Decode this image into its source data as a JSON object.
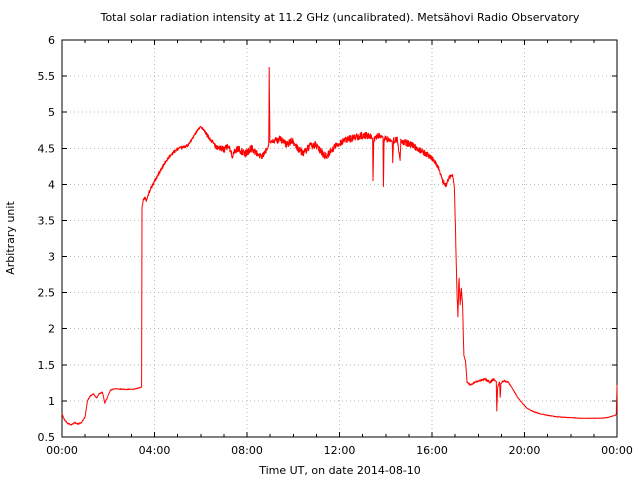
{
  "layout_colors": {
    "background": "#ffffff",
    "frame": "#000000",
    "grid": "#b8b8b8",
    "text": "#000000"
  },
  "chart_data": {
    "type": "line",
    "title": "Total solar radiation intensity at 11.2 GHz (uncalibrated). Metsähovi Radio Observatory",
    "xlabel": "Time UT, on date 2014-08-10",
    "ylabel": "Arbitrary unit",
    "xlim": [
      0,
      24
    ],
    "ylim": [
      0.5,
      6
    ],
    "grid": true,
    "legend": "none",
    "line_color": "#ff0000",
    "x_major_ticks": [
      0,
      4,
      8,
      12,
      16,
      20,
      24
    ],
    "x_major_labels": [
      "00:00",
      "04:00",
      "08:00",
      "12:00",
      "16:00",
      "20:00",
      "00:00"
    ],
    "x_minor_step": 1,
    "y_ticks": [
      0.5,
      1,
      1.5,
      2,
      2.5,
      3,
      3.5,
      4,
      4.5,
      5,
      5.5,
      6
    ],
    "y_tick_labels": [
      "0.5",
      "1",
      "1.5",
      "2",
      "2.5",
      "3",
      "3.5",
      "4",
      "4.5",
      "5",
      "5.5",
      "6"
    ],
    "series": [
      {
        "name": "total-solar-radiation-intensity",
        "control_points": [
          [
            0.0,
            0.82,
            0.008
          ],
          [
            0.1,
            0.74,
            0.008
          ],
          [
            0.25,
            0.69,
            0.008
          ],
          [
            0.4,
            0.67,
            0.008
          ],
          [
            0.55,
            0.7,
            0.008
          ],
          [
            0.7,
            0.68,
            0.008
          ],
          [
            0.85,
            0.7,
            0.008
          ],
          [
            1.0,
            0.78,
            0.008
          ],
          [
            1.1,
            1.0,
            0.008
          ],
          [
            1.2,
            1.06,
            0.008
          ],
          [
            1.35,
            1.1,
            0.008
          ],
          [
            1.5,
            1.04,
            0.008
          ],
          [
            1.6,
            1.1,
            0.008
          ],
          [
            1.75,
            1.12,
            0.008
          ],
          [
            1.85,
            0.97,
            0.008
          ],
          [
            1.95,
            1.04,
            0.008
          ],
          [
            2.1,
            1.15,
            0.006
          ],
          [
            2.3,
            1.17,
            0.005
          ],
          [
            2.7,
            1.16,
            0.005
          ],
          [
            3.1,
            1.16,
            0.005
          ],
          [
            3.44,
            1.19,
            0.005
          ],
          [
            3.46,
            3.7,
            0.02
          ],
          [
            3.55,
            3.82,
            0.025
          ],
          [
            3.65,
            3.78,
            0.025
          ],
          [
            3.8,
            3.92,
            0.025
          ],
          [
            4.0,
            4.04,
            0.025
          ],
          [
            4.2,
            4.16,
            0.025
          ],
          [
            4.4,
            4.27,
            0.025
          ],
          [
            4.6,
            4.37,
            0.022
          ],
          [
            4.8,
            4.44,
            0.022
          ],
          [
            5.0,
            4.49,
            0.02
          ],
          [
            5.2,
            4.51,
            0.02
          ],
          [
            5.45,
            4.54,
            0.018
          ],
          [
            5.65,
            4.64,
            0.018
          ],
          [
            5.85,
            4.75,
            0.015
          ],
          [
            6.0,
            4.8,
            0.015
          ],
          [
            6.15,
            4.74,
            0.02
          ],
          [
            6.4,
            4.62,
            0.03
          ],
          [
            6.7,
            4.52,
            0.04
          ],
          [
            7.0,
            4.48,
            0.045
          ],
          [
            7.2,
            4.53,
            0.045
          ],
          [
            7.35,
            4.4,
            0.045
          ],
          [
            7.6,
            4.5,
            0.045
          ],
          [
            7.9,
            4.42,
            0.05
          ],
          [
            8.2,
            4.5,
            0.05
          ],
          [
            8.45,
            4.42,
            0.045
          ],
          [
            8.65,
            4.38,
            0.04
          ],
          [
            8.85,
            4.48,
            0.035
          ],
          [
            8.94,
            4.55,
            0.02
          ],
          [
            8.96,
            5.62,
            0.0
          ],
          [
            8.99,
            4.58,
            0.02
          ],
          [
            9.2,
            4.6,
            0.045
          ],
          [
            9.45,
            4.63,
            0.05
          ],
          [
            9.7,
            4.55,
            0.05
          ],
          [
            9.95,
            4.6,
            0.05
          ],
          [
            10.2,
            4.5,
            0.05
          ],
          [
            10.45,
            4.43,
            0.05
          ],
          [
            10.7,
            4.52,
            0.05
          ],
          [
            10.95,
            4.55,
            0.05
          ],
          [
            11.2,
            4.45,
            0.055
          ],
          [
            11.45,
            4.38,
            0.05
          ],
          [
            11.65,
            4.48,
            0.05
          ],
          [
            11.9,
            4.55,
            0.05
          ],
          [
            12.15,
            4.6,
            0.05
          ],
          [
            12.45,
            4.63,
            0.05
          ],
          [
            12.75,
            4.66,
            0.05
          ],
          [
            13.05,
            4.68,
            0.05
          ],
          [
            13.35,
            4.66,
            0.045
          ],
          [
            13.43,
            4.64,
            0.0
          ],
          [
            13.45,
            4.05,
            0.0
          ],
          [
            13.48,
            4.63,
            0.04
          ],
          [
            13.7,
            4.67,
            0.045
          ],
          [
            13.88,
            4.66,
            0.0
          ],
          [
            13.9,
            3.97,
            0.0
          ],
          [
            13.93,
            4.64,
            0.04
          ],
          [
            14.1,
            4.62,
            0.045
          ],
          [
            14.28,
            4.6,
            0.0
          ],
          [
            14.3,
            4.3,
            0.0
          ],
          [
            14.33,
            4.6,
            0.045
          ],
          [
            14.5,
            4.62,
            0.045
          ],
          [
            14.62,
            4.33,
            0.0
          ],
          [
            14.65,
            4.6,
            0.04
          ],
          [
            14.85,
            4.58,
            0.045
          ],
          [
            15.1,
            4.55,
            0.045
          ],
          [
            15.35,
            4.5,
            0.04
          ],
          [
            15.6,
            4.45,
            0.04
          ],
          [
            15.85,
            4.4,
            0.04
          ],
          [
            16.1,
            4.33,
            0.035
          ],
          [
            16.3,
            4.22,
            0.03
          ],
          [
            16.45,
            4.05,
            0.03
          ],
          [
            16.6,
            3.98,
            0.035
          ],
          [
            16.75,
            4.1,
            0.03
          ],
          [
            16.9,
            4.12,
            0.025
          ],
          [
            16.97,
            3.95,
            0.02
          ],
          [
            17.02,
            3.3,
            0.02
          ],
          [
            17.08,
            2.5,
            0.04
          ],
          [
            17.12,
            2.2,
            0.04
          ],
          [
            17.17,
            2.72,
            0.04
          ],
          [
            17.22,
            2.3,
            0.04
          ],
          [
            17.27,
            2.55,
            0.03
          ],
          [
            17.32,
            2.35,
            0.02
          ],
          [
            17.38,
            1.62,
            0.015
          ],
          [
            17.45,
            1.55,
            0.015
          ],
          [
            17.52,
            1.26,
            0.01
          ],
          [
            17.65,
            1.22,
            0.012
          ],
          [
            17.85,
            1.26,
            0.012
          ],
          [
            18.05,
            1.28,
            0.012
          ],
          [
            18.3,
            1.3,
            0.015
          ],
          [
            18.5,
            1.26,
            0.018
          ],
          [
            18.65,
            1.3,
            0.018
          ],
          [
            18.78,
            1.27,
            0.0
          ],
          [
            18.8,
            0.86,
            0.0
          ],
          [
            18.84,
            1.2,
            0.015
          ],
          [
            18.92,
            1.26,
            0.0
          ],
          [
            18.95,
            1.05,
            0.0
          ],
          [
            18.98,
            1.24,
            0.012
          ],
          [
            19.1,
            1.28,
            0.012
          ],
          [
            19.3,
            1.26,
            0.008
          ],
          [
            19.5,
            1.16,
            0.006
          ],
          [
            19.7,
            1.05,
            0.005
          ],
          [
            19.9,
            0.97,
            0.005
          ],
          [
            20.1,
            0.9,
            0.004
          ],
          [
            20.4,
            0.85,
            0.004
          ],
          [
            20.7,
            0.82,
            0.004
          ],
          [
            21.0,
            0.8,
            0.004
          ],
          [
            21.4,
            0.78,
            0.004
          ],
          [
            21.9,
            0.77,
            0.003
          ],
          [
            22.4,
            0.76,
            0.003
          ],
          [
            22.9,
            0.76,
            0.003
          ],
          [
            23.3,
            0.76,
            0.003
          ],
          [
            23.6,
            0.77,
            0.003
          ],
          [
            23.8,
            0.79,
            0.003
          ],
          [
            23.93,
            0.8,
            0.0
          ],
          [
            23.97,
            0.82,
            0.0
          ],
          [
            24.0,
            1.22,
            0.0
          ]
        ]
      }
    ]
  }
}
